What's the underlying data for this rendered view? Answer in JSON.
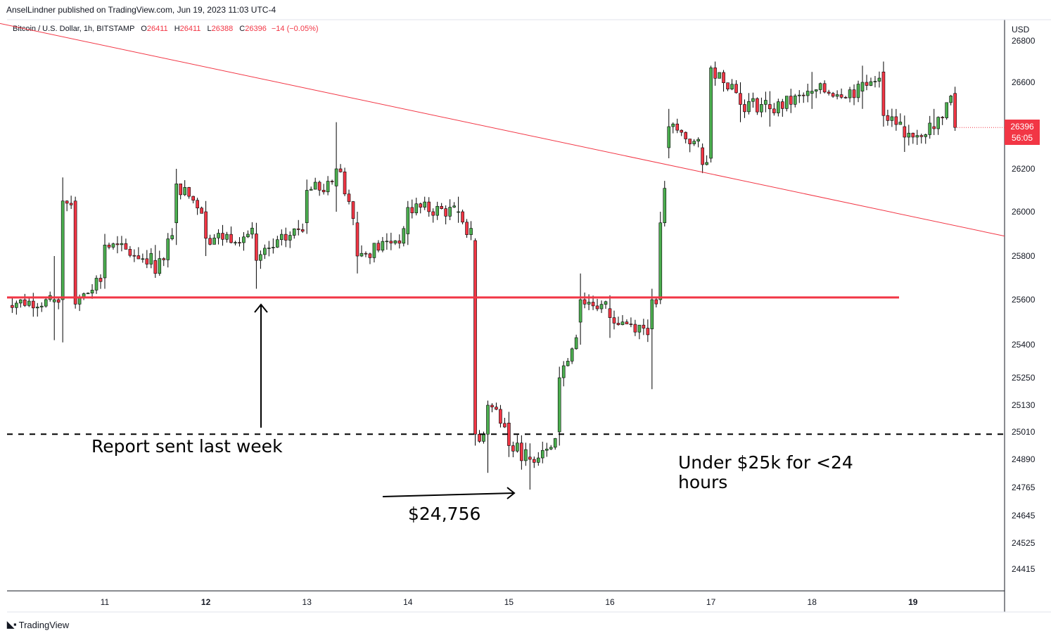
{
  "header": {
    "published_text": "AnselLindner published on TradingView.com, Jun 19, 2023 11:03 UTC-4"
  },
  "symbol": {
    "name": "Bitcoin / U.S. Dollar, 1h, BITSTAMP",
    "open_label": "O",
    "open": "26411",
    "high_label": "H",
    "high": "26411",
    "low_label": "L",
    "low": "26388",
    "close_label": "C",
    "close": "26396",
    "change": "−14 (−0.05%)"
  },
  "price_axis": {
    "currency": "USD",
    "current_price": "26396",
    "countdown": "56:05"
  },
  "annotations": {
    "report": "Report sent last week",
    "low": "$24,756",
    "under": "Under $25k for <24 hours"
  },
  "footer": {
    "brand": "TradingView"
  },
  "colors": {
    "up": "#26a69a",
    "up_body": "#4caf50",
    "down": "#f23645",
    "grid": "#e0e3eb",
    "trendline": "#f23645",
    "support": "#f23645"
  },
  "chart_data": {
    "type": "candlestick",
    "title": "Bitcoin / U.S. Dollar, 1h, BITSTAMP",
    "y_tick_labels": [
      "26800",
      "26600",
      "26400",
      "26200",
      "26000",
      "25800",
      "25600",
      "25400",
      "25250",
      "25130",
      "25010",
      "24890",
      "24765",
      "24645",
      "24525",
      "24415"
    ],
    "x_tick_labels": [
      "11",
      "12",
      "13",
      "14",
      "15",
      "16",
      "17",
      "18",
      "19"
    ],
    "x_ticks": [
      {
        "label": "11",
        "day": 11
      },
      {
        "label": "12",
        "day": 12
      },
      {
        "label": "13",
        "day": 13
      },
      {
        "label": "14",
        "day": 14
      },
      {
        "label": "15",
        "day": 15
      },
      {
        "label": "16",
        "day": 16
      },
      {
        "label": "17",
        "day": 17
      },
      {
        "label": "18",
        "day": 18
      },
      {
        "label": "19",
        "day": 19
      }
    ],
    "x_range_days": [
      10.0,
      19.9
    ],
    "support_level": 25610,
    "dashed_level": 25000,
    "trendline": {
      "from": {
        "day": 10.0,
        "price": 26880
      },
      "to": {
        "day": 19.9,
        "price": 25890
      }
    },
    "ohlc_approx": [
      {
        "day": 10.5,
        "o": 25590,
        "h": 25800,
        "l": 25420,
        "c": 25600
      },
      {
        "day": 10.6,
        "o": 25600,
        "h": 26160,
        "l": 25410,
        "c": 26050
      },
      {
        "day": 10.7,
        "o": 26050,
        "h": 26070,
        "l": 25560,
        "c": 25580
      },
      {
        "day": 11.0,
        "o": 25700,
        "h": 25900,
        "l": 25650,
        "c": 25850
      },
      {
        "day": 11.5,
        "o": 25780,
        "h": 25850,
        "l": 25700,
        "c": 25720
      },
      {
        "day": 11.7,
        "o": 25950,
        "h": 26200,
        "l": 25850,
        "c": 26130
      },
      {
        "day": 12.0,
        "o": 26000,
        "h": 26050,
        "l": 25800,
        "c": 25880
      },
      {
        "day": 12.5,
        "o": 25900,
        "h": 25950,
        "l": 25650,
        "c": 25780
      },
      {
        "day": 13.0,
        "o": 25950,
        "h": 26150,
        "l": 25900,
        "c": 26100
      },
      {
        "day": 13.3,
        "o": 26120,
        "h": 26420,
        "l": 26000,
        "c": 26200
      },
      {
        "day": 13.5,
        "o": 25950,
        "h": 26000,
        "l": 25720,
        "c": 25800
      },
      {
        "day": 14.0,
        "o": 25900,
        "h": 26050,
        "l": 25850,
        "c": 26020
      },
      {
        "day": 14.5,
        "o": 26000,
        "h": 26070,
        "l": 25950,
        "c": 26000
      },
      {
        "day": 14.65,
        "o": 25870,
        "h": 25880,
        "l": 24950,
        "c": 25000
      },
      {
        "day": 14.8,
        "o": 25000,
        "h": 25150,
        "l": 24830,
        "c": 25130
      },
      {
        "day": 15.0,
        "o": 25050,
        "h": 25100,
        "l": 24900,
        "c": 24950
      },
      {
        "day": 15.2,
        "o": 24900,
        "h": 24960,
        "l": 24756,
        "c": 24890
      },
      {
        "day": 15.5,
        "o": 25010,
        "h": 25300,
        "l": 24950,
        "c": 25250
      },
      {
        "day": 15.7,
        "o": 25500,
        "h": 25720,
        "l": 25400,
        "c": 25600
      },
      {
        "day": 16.0,
        "o": 25560,
        "h": 25620,
        "l": 25430,
        "c": 25520
      },
      {
        "day": 16.4,
        "o": 25470,
        "h": 25650,
        "l": 25200,
        "c": 25600
      },
      {
        "day": 16.5,
        "o": 25600,
        "h": 26000,
        "l": 25580,
        "c": 25950
      },
      {
        "day": 16.6,
        "o": 26300,
        "h": 26480,
        "l": 26250,
        "c": 26400
      },
      {
        "day": 16.9,
        "o": 26300,
        "h": 26320,
        "l": 26180,
        "c": 26220
      },
      {
        "day": 17.0,
        "o": 26250,
        "h": 26680,
        "l": 26230,
        "c": 26670
      },
      {
        "day": 17.3,
        "o": 26550,
        "h": 26600,
        "l": 26420,
        "c": 26500
      },
      {
        "day": 17.6,
        "o": 26500,
        "h": 26560,
        "l": 26400,
        "c": 26480
      },
      {
        "day": 18.0,
        "o": 26550,
        "h": 26650,
        "l": 26480,
        "c": 26560
      },
      {
        "day": 18.5,
        "o": 26560,
        "h": 26680,
        "l": 26480,
        "c": 26600
      },
      {
        "day": 18.7,
        "o": 26650,
        "h": 26700,
        "l": 26400,
        "c": 26450
      },
      {
        "day": 18.9,
        "o": 26400,
        "h": 26450,
        "l": 26280,
        "c": 26350
      },
      {
        "day": 19.2,
        "o": 26400,
        "h": 26480,
        "l": 26360,
        "c": 26390
      },
      {
        "day": 19.4,
        "o": 26550,
        "h": 26580,
        "l": 26380,
        "c": 26396
      }
    ]
  }
}
